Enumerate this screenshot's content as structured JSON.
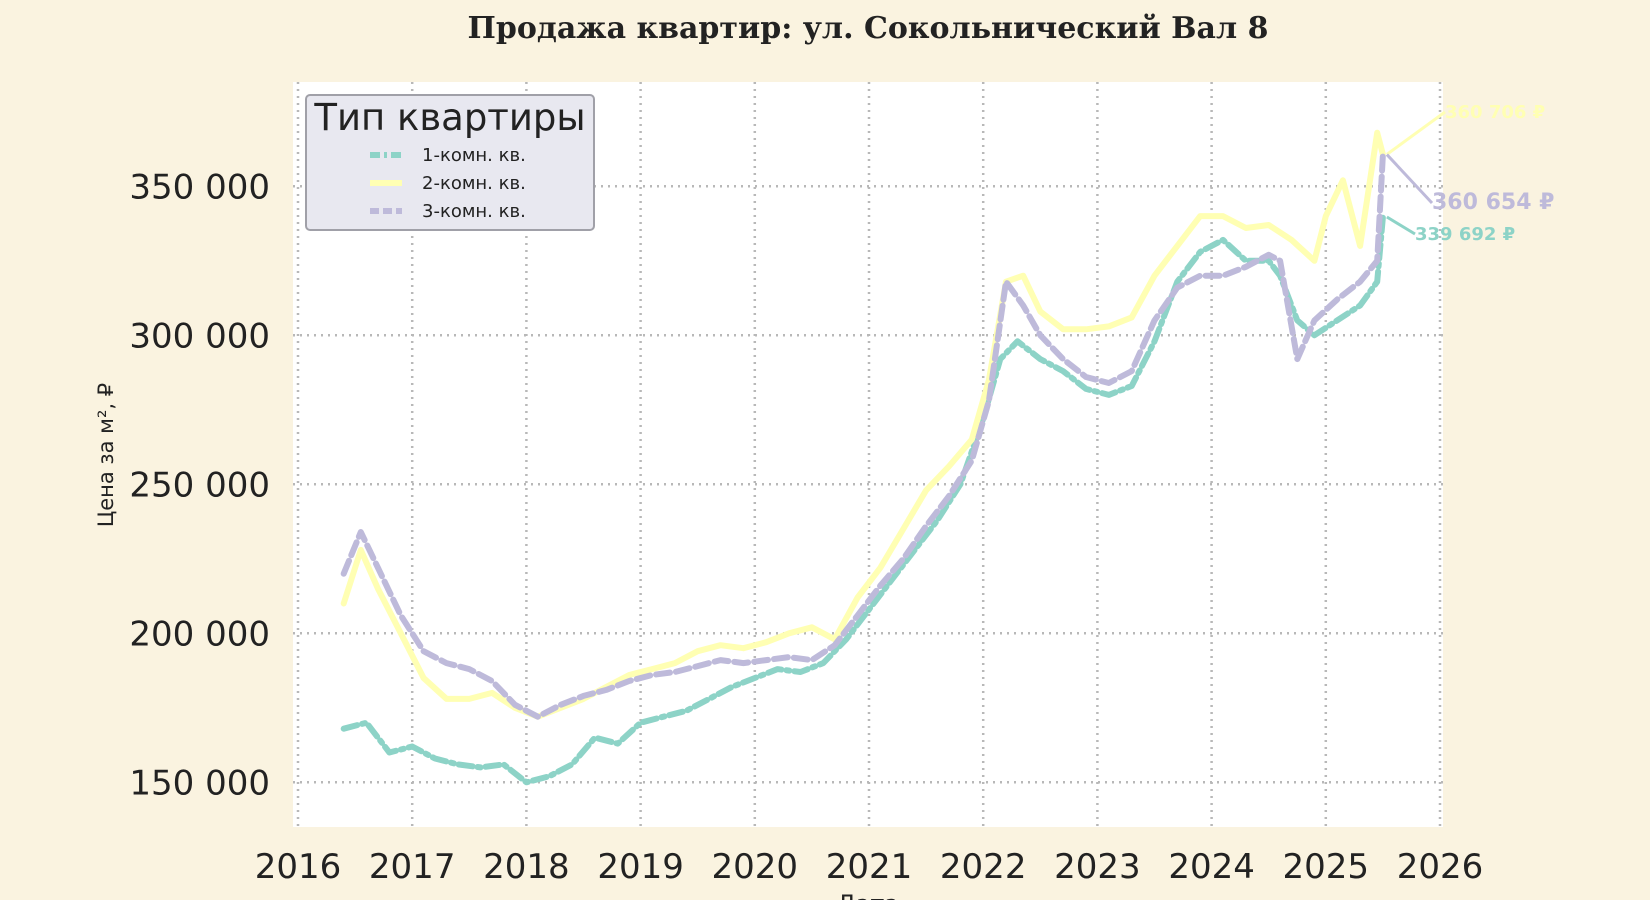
{
  "chart_data": {
    "type": "line",
    "title": "Продажа квартир: ул. Сокольнический Вал 8",
    "xlabel": "Дата",
    "ylabel": "Цена за м², ₽",
    "xlim": [
      2016.0,
      2026.0
    ],
    "ylim": [
      135000,
      385000
    ],
    "x_ticks": [
      2016,
      2017,
      2018,
      2019,
      2020,
      2021,
      2022,
      2023,
      2024,
      2025,
      2026
    ],
    "x_tick_labels": [
      "2016",
      "2017",
      "2018",
      "2019",
      "2020",
      "2021",
      "2022",
      "2023",
      "2024",
      "2025",
      "2026"
    ],
    "y_ticks": [
      150000,
      200000,
      250000,
      300000,
      350000
    ],
    "y_tick_labels": [
      "150 000",
      "200 000",
      "250 000",
      "300 000",
      "350 000"
    ],
    "grid": true,
    "legend": {
      "title": "Тип квартиры",
      "position": "top-left",
      "items": [
        "1-комн. кв.",
        "2-комн. кв.",
        "3-комн. кв."
      ]
    },
    "series": [
      {
        "name": "1-комн. кв.",
        "color": "#8dd3c7",
        "style": "dashdot",
        "points": [
          [
            2016.4,
            168000
          ],
          [
            2016.6,
            170000
          ],
          [
            2016.8,
            160000
          ],
          [
            2017.0,
            162000
          ],
          [
            2017.2,
            158000
          ],
          [
            2017.4,
            156000
          ],
          [
            2017.6,
            155000
          ],
          [
            2017.8,
            156000
          ],
          [
            2018.0,
            150000
          ],
          [
            2018.2,
            152000
          ],
          [
            2018.4,
            156000
          ],
          [
            2018.6,
            165000
          ],
          [
            2018.8,
            163000
          ],
          [
            2019.0,
            170000
          ],
          [
            2019.2,
            172000
          ],
          [
            2019.4,
            174000
          ],
          [
            2019.6,
            178000
          ],
          [
            2019.8,
            182000
          ],
          [
            2020.0,
            185000
          ],
          [
            2020.2,
            188000
          ],
          [
            2020.4,
            187000
          ],
          [
            2020.6,
            190000
          ],
          [
            2020.8,
            198000
          ],
          [
            2021.0,
            208000
          ],
          [
            2021.2,
            218000
          ],
          [
            2021.4,
            228000
          ],
          [
            2021.6,
            238000
          ],
          [
            2021.8,
            250000
          ],
          [
            2022.0,
            272000
          ],
          [
            2022.15,
            292000
          ],
          [
            2022.3,
            298000
          ],
          [
            2022.5,
            292000
          ],
          [
            2022.7,
            288000
          ],
          [
            2022.9,
            282000
          ],
          [
            2023.1,
            280000
          ],
          [
            2023.3,
            283000
          ],
          [
            2023.5,
            298000
          ],
          [
            2023.7,
            318000
          ],
          [
            2023.9,
            328000
          ],
          [
            2024.1,
            332000
          ],
          [
            2024.3,
            325000
          ],
          [
            2024.5,
            325000
          ],
          [
            2024.6,
            320000
          ],
          [
            2024.75,
            305000
          ],
          [
            2024.9,
            300000
          ],
          [
            2025.1,
            305000
          ],
          [
            2025.3,
            310000
          ],
          [
            2025.45,
            318000
          ],
          [
            2025.5,
            339692
          ]
        ]
      },
      {
        "name": "2-комн. кв.",
        "color": "#ffffb3",
        "style": "solid",
        "points": [
          [
            2016.4,
            210000
          ],
          [
            2016.55,
            228000
          ],
          [
            2016.7,
            215000
          ],
          [
            2016.9,
            200000
          ],
          [
            2017.1,
            185000
          ],
          [
            2017.3,
            178000
          ],
          [
            2017.5,
            178000
          ],
          [
            2017.7,
            180000
          ],
          [
            2017.9,
            175000
          ],
          [
            2018.1,
            172000
          ],
          [
            2018.3,
            175000
          ],
          [
            2018.5,
            178000
          ],
          [
            2018.7,
            182000
          ],
          [
            2018.9,
            186000
          ],
          [
            2019.1,
            188000
          ],
          [
            2019.3,
            190000
          ],
          [
            2019.5,
            194000
          ],
          [
            2019.7,
            196000
          ],
          [
            2019.9,
            195000
          ],
          [
            2020.1,
            197000
          ],
          [
            2020.3,
            200000
          ],
          [
            2020.5,
            202000
          ],
          [
            2020.7,
            198000
          ],
          [
            2020.9,
            212000
          ],
          [
            2021.1,
            222000
          ],
          [
            2021.3,
            235000
          ],
          [
            2021.5,
            248000
          ],
          [
            2021.7,
            256000
          ],
          [
            2021.9,
            265000
          ],
          [
            2022.05,
            285000
          ],
          [
            2022.2,
            318000
          ],
          [
            2022.35,
            320000
          ],
          [
            2022.5,
            308000
          ],
          [
            2022.7,
            302000
          ],
          [
            2022.9,
            302000
          ],
          [
            2023.1,
            303000
          ],
          [
            2023.3,
            306000
          ],
          [
            2023.5,
            320000
          ],
          [
            2023.7,
            330000
          ],
          [
            2023.9,
            340000
          ],
          [
            2024.1,
            340000
          ],
          [
            2024.3,
            336000
          ],
          [
            2024.5,
            337000
          ],
          [
            2024.7,
            332000
          ],
          [
            2024.9,
            325000
          ],
          [
            2025.0,
            340000
          ],
          [
            2025.15,
            352000
          ],
          [
            2025.3,
            330000
          ],
          [
            2025.45,
            368000
          ],
          [
            2025.5,
            360706
          ]
        ]
      },
      {
        "name": "3-комн. кв.",
        "color": "#bebada",
        "style": "dashed",
        "points": [
          [
            2016.4,
            220000
          ],
          [
            2016.55,
            234000
          ],
          [
            2016.7,
            222000
          ],
          [
            2016.9,
            206000
          ],
          [
            2017.1,
            194000
          ],
          [
            2017.3,
            190000
          ],
          [
            2017.5,
            188000
          ],
          [
            2017.7,
            184000
          ],
          [
            2017.9,
            176000
          ],
          [
            2018.1,
            172000
          ],
          [
            2018.3,
            176000
          ],
          [
            2018.5,
            179000
          ],
          [
            2018.7,
            181000
          ],
          [
            2018.9,
            184000
          ],
          [
            2019.1,
            186000
          ],
          [
            2019.3,
            187000
          ],
          [
            2019.5,
            189000
          ],
          [
            2019.7,
            191000
          ],
          [
            2019.9,
            190000
          ],
          [
            2020.1,
            191000
          ],
          [
            2020.3,
            192000
          ],
          [
            2020.5,
            191000
          ],
          [
            2020.7,
            196000
          ],
          [
            2020.9,
            206000
          ],
          [
            2021.1,
            216000
          ],
          [
            2021.3,
            225000
          ],
          [
            2021.5,
            236000
          ],
          [
            2021.7,
            246000
          ],
          [
            2021.9,
            258000
          ],
          [
            2022.05,
            278000
          ],
          [
            2022.2,
            318000
          ],
          [
            2022.35,
            310000
          ],
          [
            2022.5,
            300000
          ],
          [
            2022.7,
            292000
          ],
          [
            2022.9,
            286000
          ],
          [
            2023.1,
            284000
          ],
          [
            2023.3,
            288000
          ],
          [
            2023.5,
            305000
          ],
          [
            2023.7,
            316000
          ],
          [
            2023.9,
            320000
          ],
          [
            2024.1,
            320000
          ],
          [
            2024.3,
            323000
          ],
          [
            2024.5,
            327000
          ],
          [
            2024.6,
            325000
          ],
          [
            2024.75,
            292000
          ],
          [
            2024.9,
            305000
          ],
          [
            2025.1,
            312000
          ],
          [
            2025.3,
            318000
          ],
          [
            2025.45,
            325000
          ],
          [
            2025.5,
            360654
          ]
        ]
      }
    ],
    "annotations": [
      {
        "series": "2-комн. кв.",
        "label": "360 706 ₽",
        "x": 2025.5,
        "y": 360706
      },
      {
        "series": "3-комн. кв.",
        "label": "360 654 ₽",
        "x": 2025.5,
        "y": 360654
      },
      {
        "series": "1-комн. кв.",
        "label": "339 692 ₽",
        "x": 2025.5,
        "y": 339692
      }
    ]
  }
}
